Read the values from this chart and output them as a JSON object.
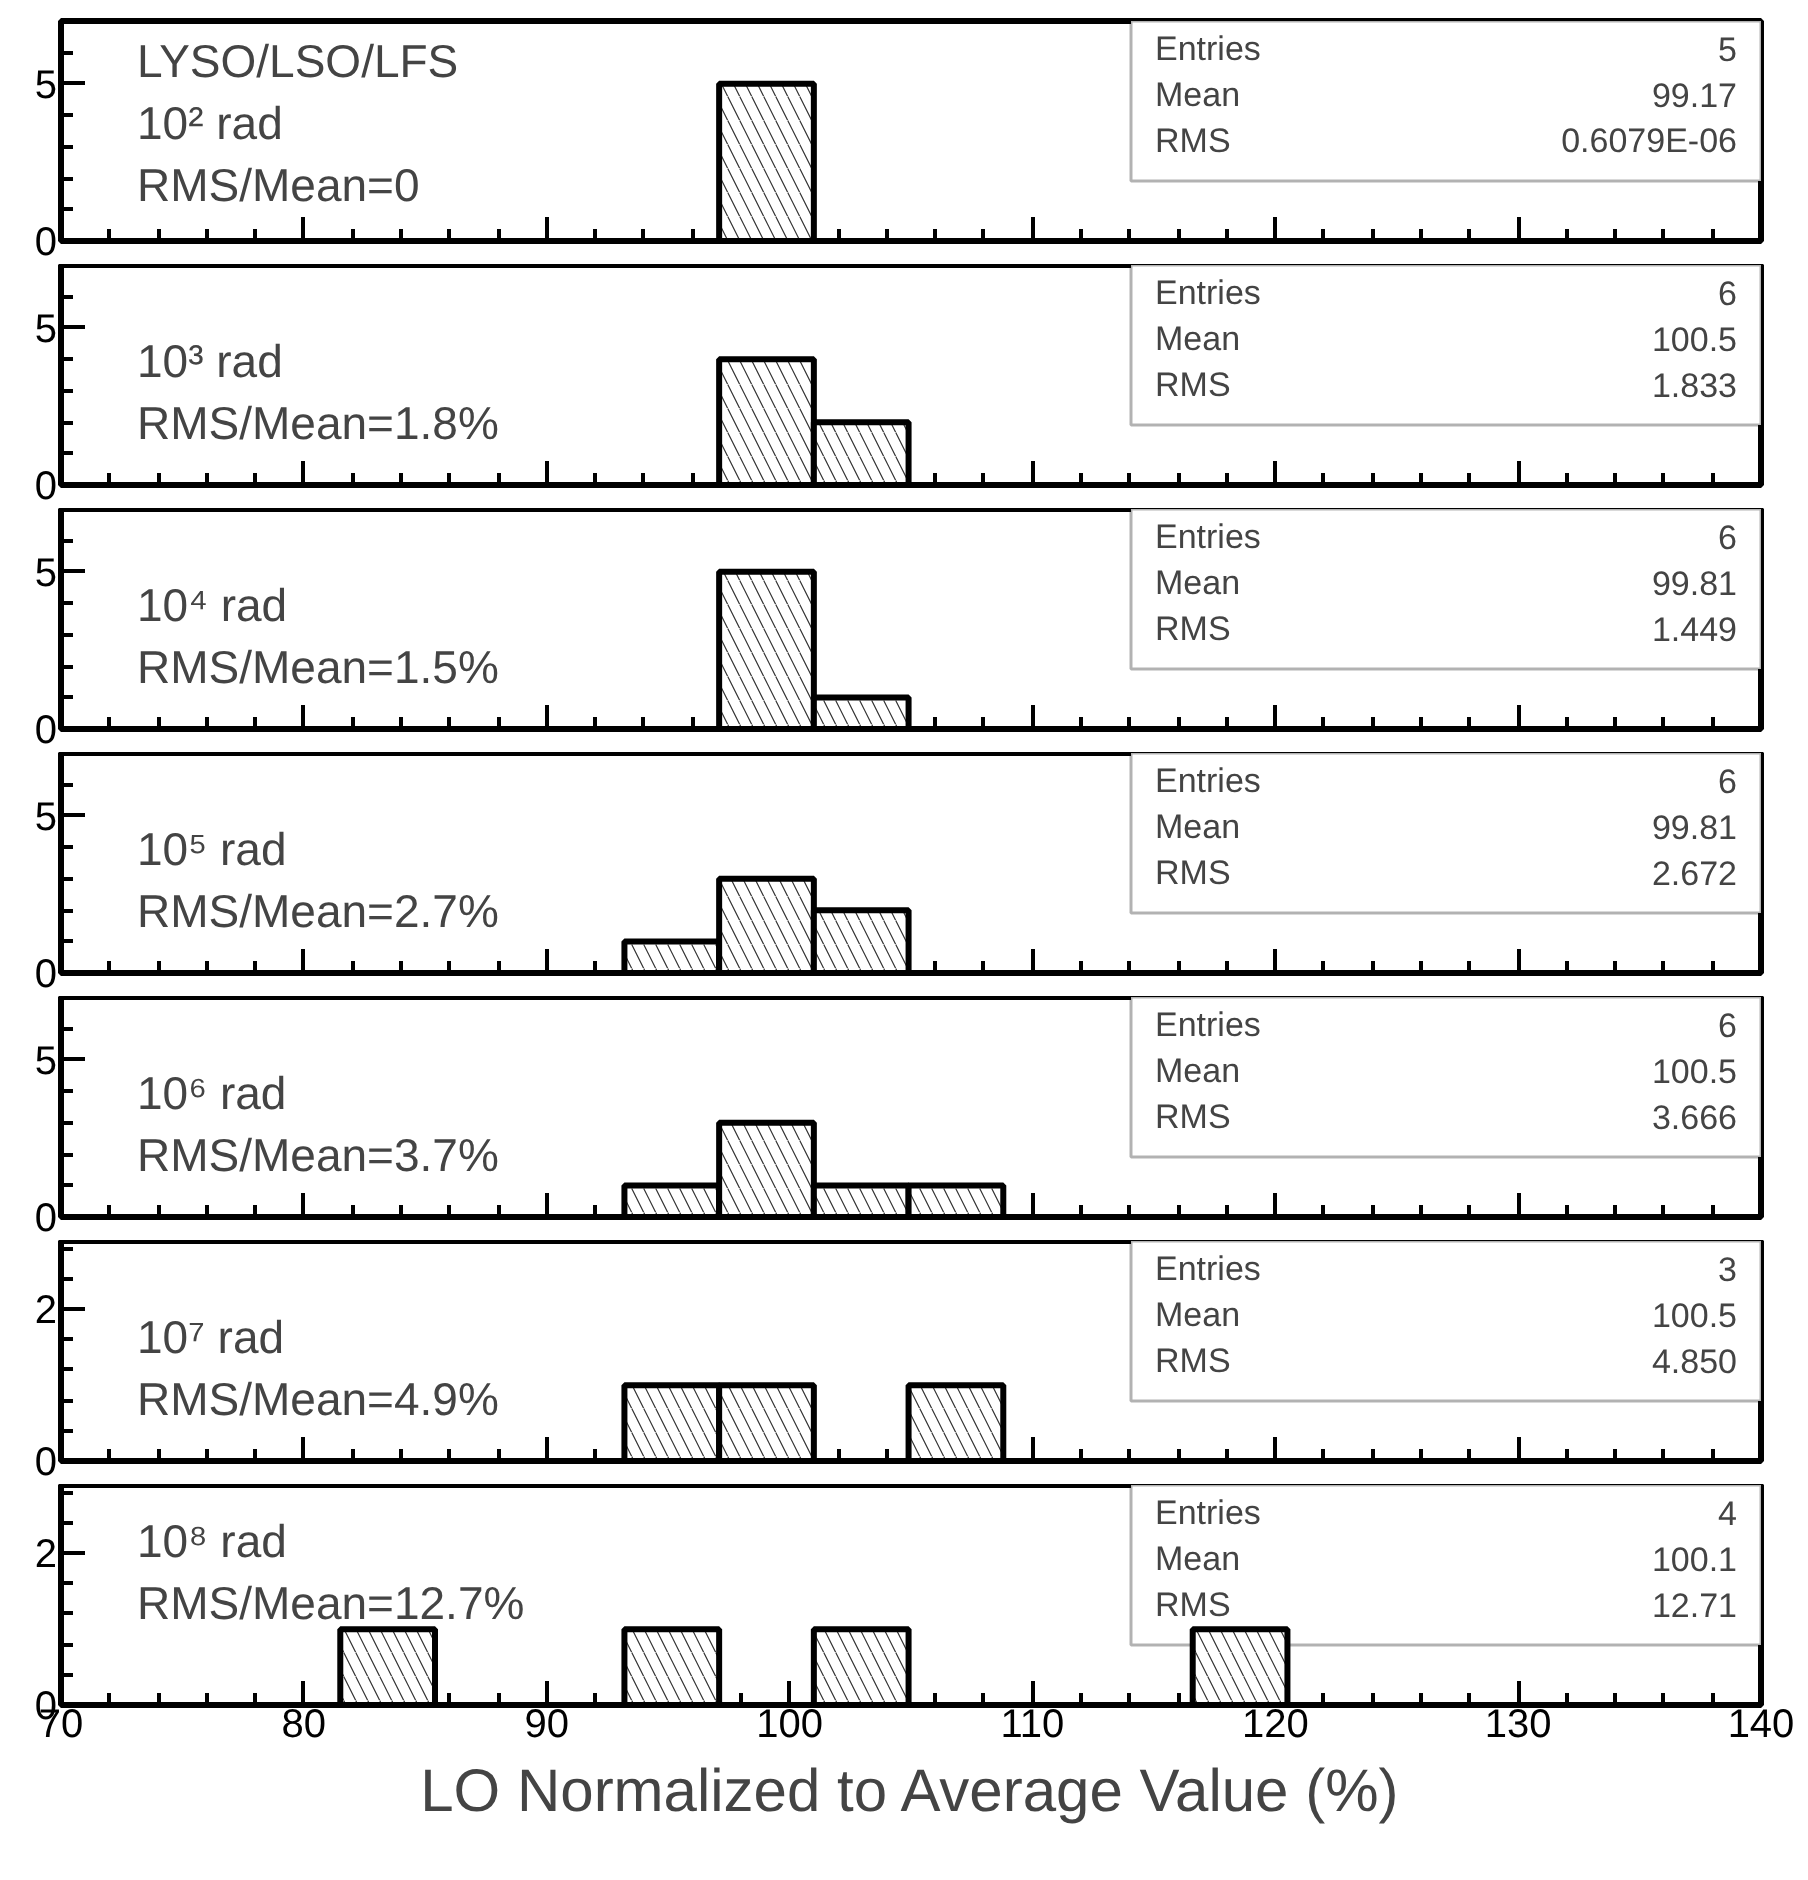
{
  "chart_data": [
    {
      "type": "histogram",
      "bins": [
        97.1,
        101.0
      ],
      "values": [
        5
      ],
      "xlim": [
        70,
        140
      ],
      "ylim": [
        0,
        7
      ],
      "xticks": [
        70,
        80,
        90,
        100,
        110,
        120,
        130,
        140
      ],
      "yticks": [
        0,
        5
      ],
      "tick_labels": "y",
      "annotations": [
        "LYSO/LSO/LFS",
        "10² rad",
        "RMS/Mean=0",
        "Entries",
        "5",
        "Mean",
        "99.17",
        "RMS",
        "0.6079E-06"
      ]
    },
    {
      "type": "histogram",
      "bins": [
        97.1,
        101.0,
        104.9
      ],
      "values": [
        4,
        2
      ],
      "xlim": [
        70,
        140
      ],
      "ylim": [
        0,
        7
      ],
      "xticks": [
        70,
        80,
        90,
        100,
        110,
        120,
        130,
        140
      ],
      "yticks": [
        0,
        5
      ],
      "tick_labels": "y",
      "annotations": [
        "10³ rad",
        "RMS/Mean=1.8%",
        "Entries",
        "6",
        "Mean",
        "100.5",
        "RMS",
        "1.833"
      ]
    },
    {
      "type": "histogram",
      "bins": [
        97.1,
        101.0,
        104.9
      ],
      "values": [
        5,
        1
      ],
      "xlim": [
        70,
        140
      ],
      "ylim": [
        0,
        7
      ],
      "xticks": [
        70,
        80,
        90,
        100,
        110,
        120,
        130,
        140
      ],
      "yticks": [
        0,
        5
      ],
      "tick_labels": "y",
      "annotations": [
        "10⁴ rad",
        "RMS/Mean=1.5%",
        "Entries",
        "6",
        "Mean",
        "99.81",
        "RMS",
        "1.449"
      ]
    },
    {
      "type": "histogram",
      "bins": [
        93.2,
        97.1,
        101.0,
        104.9
      ],
      "values": [
        1,
        3,
        2
      ],
      "xlim": [
        70,
        140
      ],
      "ylim": [
        0,
        7
      ],
      "xticks": [
        70,
        80,
        90,
        100,
        110,
        120,
        130,
        140
      ],
      "yticks": [
        0,
        5
      ],
      "tick_labels": "y",
      "annotations": [
        "10⁵ rad",
        "RMS/Mean=2.7%",
        "Entries",
        "6",
        "Mean",
        "99.81",
        "RMS",
        "2.672"
      ]
    },
    {
      "type": "histogram",
      "bins": [
        93.2,
        97.1,
        101.0,
        104.9,
        108.8
      ],
      "values": [
        1,
        3,
        1,
        1
      ],
      "xlim": [
        70,
        140
      ],
      "ylim": [
        0,
        7
      ],
      "xticks": [
        70,
        80,
        90,
        100,
        110,
        120,
        130,
        140
      ],
      "yticks": [
        0,
        5
      ],
      "tick_labels": "y",
      "annotations": [
        "10⁶ rad",
        "RMS/Mean=3.7%",
        "Entries",
        "6",
        "Mean",
        "100.5",
        "RMS",
        "3.666"
      ]
    },
    {
      "type": "histogram",
      "bins": [
        93.2,
        97.1,
        101.0,
        104.9,
        108.8
      ],
      "values": [
        1,
        1,
        0,
        1
      ],
      "xlim": [
        70,
        140
      ],
      "ylim": [
        0,
        2.9
      ],
      "xticks": [
        70,
        80,
        90,
        100,
        110,
        120,
        130,
        140
      ],
      "yticks": [
        0,
        2
      ],
      "tick_labels": "y",
      "annotations": [
        "10⁷ rad",
        "RMS/Mean=4.9%",
        "Entries",
        "3",
        "Mean",
        "100.5",
        "RMS",
        "4.850"
      ]
    },
    {
      "type": "histogram",
      "bins": [
        81.5,
        85.4,
        89.3,
        93.2,
        97.1,
        101.0,
        104.9,
        108.8,
        112.7,
        116.6,
        120.5
      ],
      "values": [
        1,
        0,
        0,
        1,
        0,
        1,
        0,
        0,
        0,
        1
      ],
      "xlim": [
        70,
        140
      ],
      "ylim": [
        0,
        2.9
      ],
      "xticks": [
        70,
        80,
        90,
        100,
        110,
        120,
        130,
        140
      ],
      "yticks": [
        0,
        2
      ],
      "xlabel": "LO Normalized to Average Value (%)",
      "annotations": [
        "10⁸ rad",
        "RMS/Mean=12.7%",
        "Entries",
        "4",
        "Mean",
        "100.1",
        "RMS",
        "12.71"
      ]
    }
  ]
}
